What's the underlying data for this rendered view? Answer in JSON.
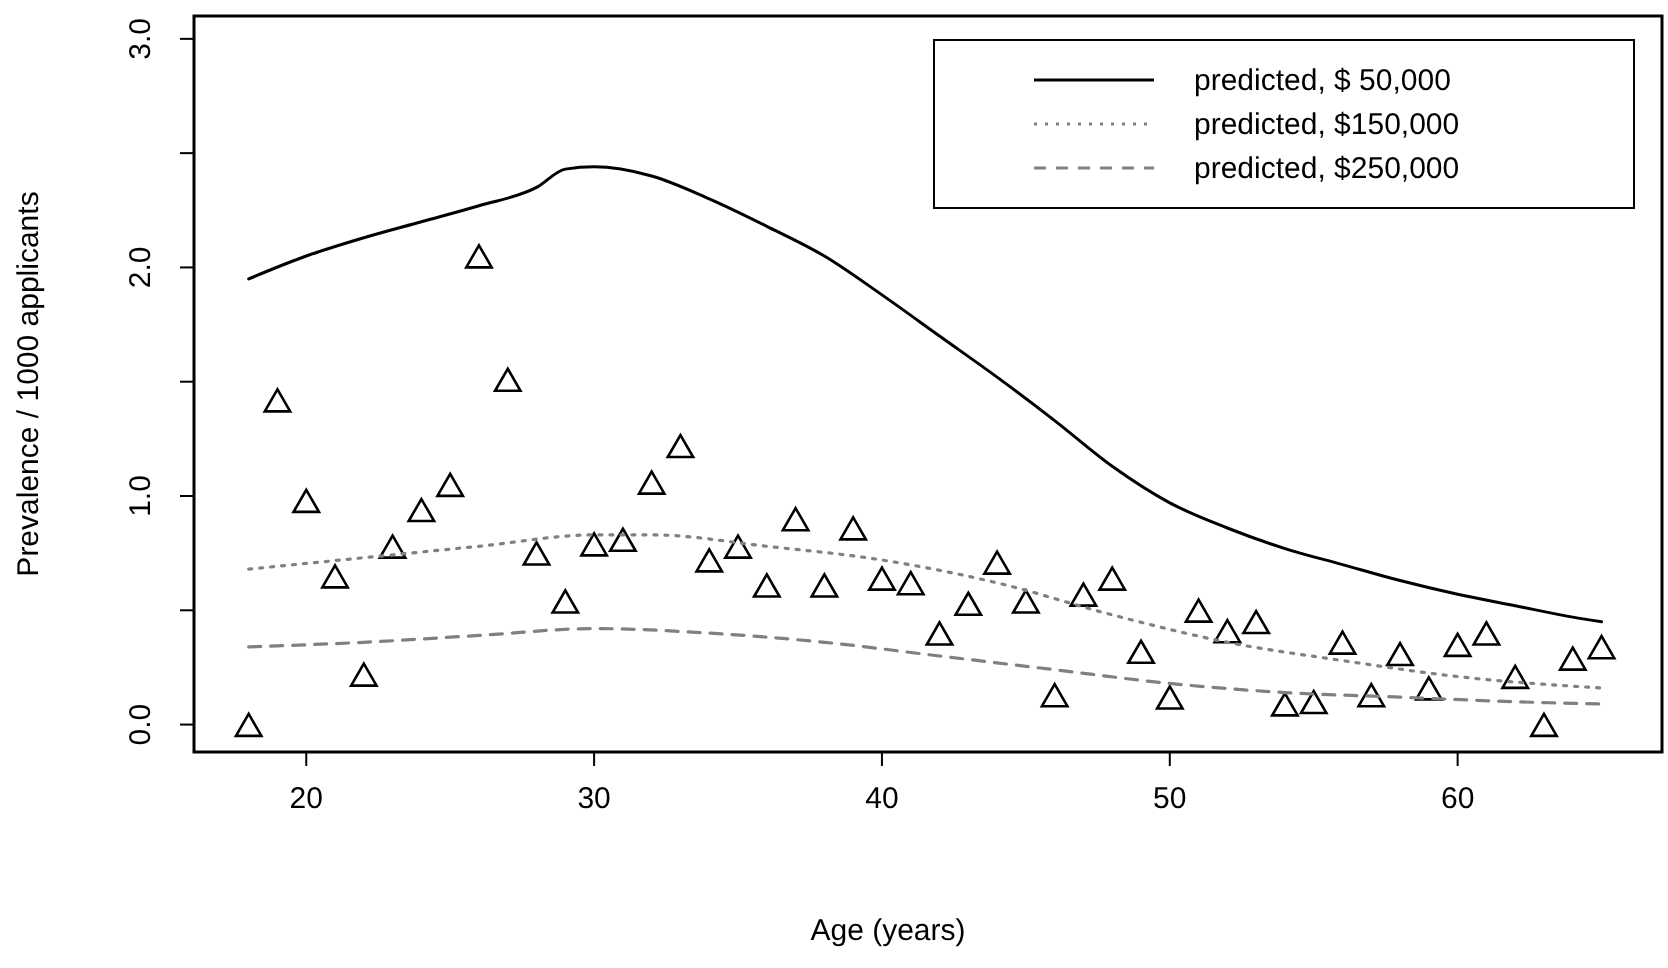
{
  "chart_data": {
    "type": "line",
    "xlabel": "Age (years)",
    "ylabel": "Prevalence / 1000 applicants",
    "xlim": [
      16.1,
      67.1
    ],
    "ylim": [
      -0.12,
      3.1
    ],
    "xticks": [
      20,
      30,
      40,
      50,
      60
    ],
    "yticks": [
      {
        "value": 0,
        "label": "0.0"
      },
      {
        "value": 0.5,
        "label": null
      },
      {
        "value": 1,
        "label": "1.0"
      },
      {
        "value": 1.5,
        "label": null
      },
      {
        "value": 2,
        "label": "2.0"
      },
      {
        "value": 2.5,
        "label": null
      },
      {
        "value": 3,
        "label": "3.0"
      }
    ],
    "grid": false,
    "legend": "top right",
    "series": [
      {
        "type": "scatter",
        "marker": "triangle",
        "color": "#000000",
        "x": [
          18,
          19,
          20,
          21,
          22,
          23,
          24,
          25,
          26,
          27,
          28,
          29,
          30,
          31,
          32,
          33,
          34,
          35,
          36,
          37,
          38,
          39,
          40,
          41,
          42,
          43,
          44,
          45,
          46,
          47,
          48,
          49,
          50,
          51,
          52,
          53,
          54,
          55,
          56,
          57,
          58,
          59,
          60,
          61,
          62,
          63,
          64,
          65
        ],
        "values": [
          0.0,
          1.42,
          0.98,
          0.65,
          0.22,
          0.78,
          0.94,
          1.05,
          2.05,
          1.51,
          0.75,
          0.54,
          0.79,
          0.81,
          1.06,
          1.22,
          0.72,
          0.78,
          0.61,
          0.9,
          0.61,
          0.86,
          0.64,
          0.62,
          0.4,
          0.53,
          0.71,
          0.54,
          0.13,
          0.57,
          0.64,
          0.32,
          0.12,
          0.5,
          0.41,
          0.45,
          0.09,
          0.1,
          0.36,
          0.13,
          0.31,
          0.16,
          0.35,
          0.4,
          0.21,
          0.0,
          0.29,
          0.34
        ]
      },
      {
        "name": "predicted, $ 50,000",
        "color": "#000000",
        "line_style": "solid",
        "x": [
          18,
          20,
          22,
          24,
          26,
          28,
          29,
          30,
          32,
          34,
          36,
          38,
          40,
          42,
          44,
          46,
          48,
          50,
          52,
          54,
          56,
          58,
          60,
          62,
          64,
          65
        ],
        "values": [
          1.95,
          2.05,
          2.13,
          2.2,
          2.27,
          2.35,
          2.43,
          2.44,
          2.4,
          2.3,
          2.18,
          2.05,
          1.88,
          1.7,
          1.52,
          1.33,
          1.13,
          0.97,
          0.86,
          0.77,
          0.7,
          0.63,
          0.57,
          0.52,
          0.47,
          0.45
        ]
      },
      {
        "name": "predicted, $150,000",
        "color": "#808080",
        "line_style": "dotted",
        "x": [
          18,
          22,
          26,
          30,
          32,
          36,
          40,
          44,
          48,
          52,
          56,
          60,
          65
        ],
        "values": [
          0.68,
          0.73,
          0.78,
          0.83,
          0.83,
          0.78,
          0.72,
          0.62,
          0.48,
          0.36,
          0.28,
          0.21,
          0.16
        ]
      },
      {
        "name": "predicted, $250,000",
        "color": "#808080",
        "line_style": "dashed",
        "x": [
          18,
          22,
          26,
          30,
          34,
          38,
          42,
          46,
          50,
          54,
          58,
          62,
          65
        ],
        "values": [
          0.34,
          0.36,
          0.39,
          0.42,
          0.4,
          0.36,
          0.3,
          0.24,
          0.18,
          0.14,
          0.12,
          0.1,
          0.09
        ]
      }
    ]
  }
}
